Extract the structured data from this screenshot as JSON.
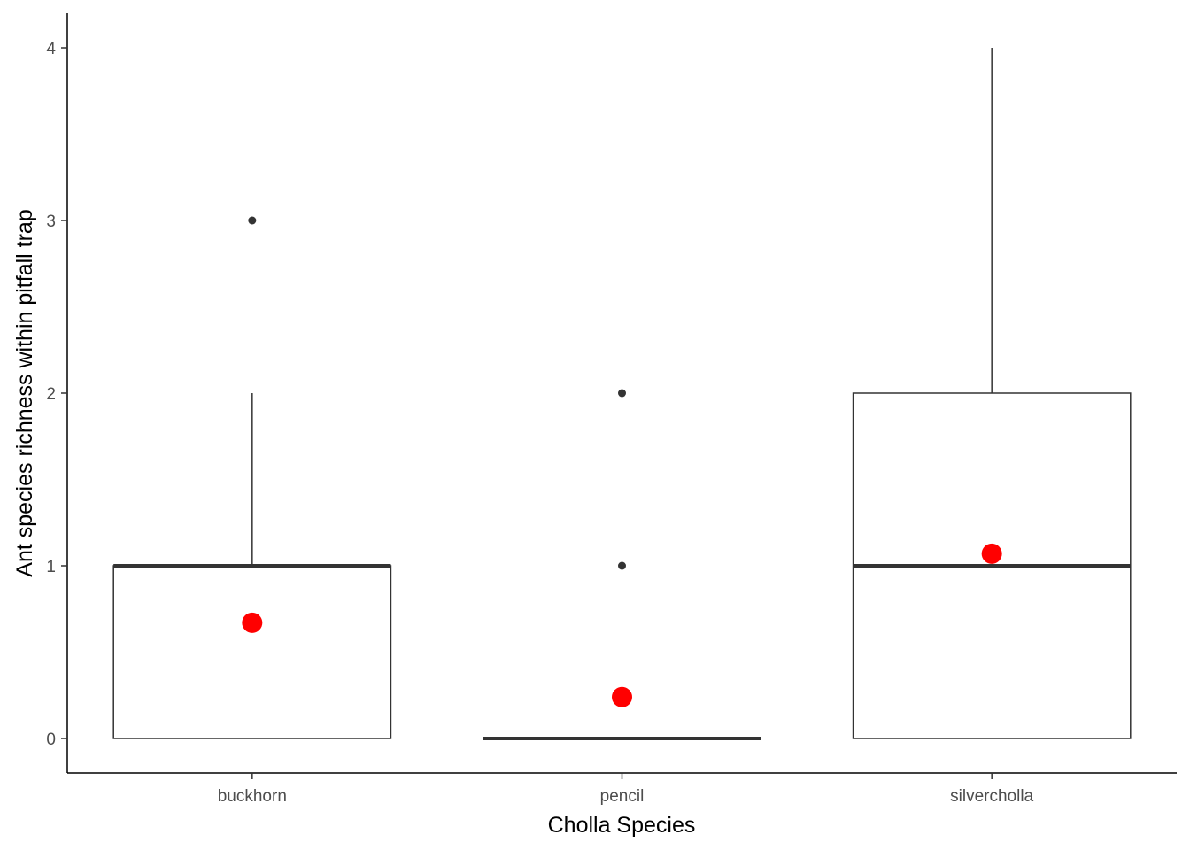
{
  "chart_data": {
    "type": "boxplot",
    "xlabel": "Cholla Species",
    "ylabel": "Ant species richness within pitfall trap",
    "categories": [
      "buckhorn",
      "pencil",
      "silvercholla"
    ],
    "ylim": [
      -0.2,
      4.2
    ],
    "yticks": [
      0,
      1,
      2,
      3,
      4
    ],
    "grid": false,
    "legend": "none",
    "colors": {
      "box": "#333333",
      "mean_point": "#ff0000",
      "outlier": "#333333",
      "axis": "#000000"
    },
    "boxes": [
      {
        "category": "buckhorn",
        "lower_whisker": 0,
        "q1": 0,
        "median": 1,
        "q3": 1,
        "upper_whisker": 2,
        "outliers": [
          3
        ],
        "mean": 0.67
      },
      {
        "category": "pencil",
        "lower_whisker": 0,
        "q1": 0,
        "median": 0,
        "q3": 0,
        "upper_whisker": 0,
        "outliers": [
          1,
          2
        ],
        "mean": 0.24
      },
      {
        "category": "silvercholla",
        "lower_whisker": 0,
        "q1": 0,
        "median": 1,
        "q3": 2,
        "upper_whisker": 4,
        "outliers": [],
        "mean": 1.07
      }
    ]
  }
}
